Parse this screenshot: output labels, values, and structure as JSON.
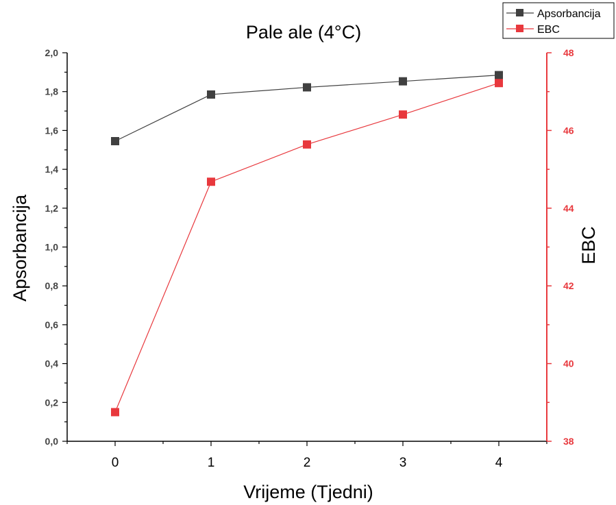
{
  "chart_data": {
    "type": "line",
    "title": "Pale ale (4°C)",
    "xlabel": "Vrijeme (Tjedni)",
    "ylabel_left": "Apsorbancija",
    "ylabel_right": "EBC",
    "x": [
      0,
      1,
      2,
      3,
      4
    ],
    "x_ticks": [
      "0",
      "1",
      "2",
      "3",
      "4"
    ],
    "xlim": [
      -0.5,
      4.5
    ],
    "y_left_lim": [
      0.0,
      2.0
    ],
    "y_left_ticks": [
      "0,0",
      "0,2",
      "0,4",
      "0,6",
      "0,8",
      "1,0",
      "1,2",
      "1,4",
      "1,6",
      "1,8",
      "2,0"
    ],
    "y_right_lim": [
      38,
      48
    ],
    "y_right_ticks": [
      "38",
      "40",
      "42",
      "44",
      "46",
      "48"
    ],
    "legend_position": "top-right",
    "grid": false,
    "series": [
      {
        "name": "Apsorbancija",
        "axis": "left",
        "color": "#404040",
        "marker": "square",
        "values": [
          1.545,
          1.785,
          1.822,
          1.853,
          1.885
        ]
      },
      {
        "name": "EBC",
        "axis": "right",
        "color": "#e8383d",
        "marker": "square",
        "values": [
          38.75,
          44.68,
          45.64,
          46.41,
          47.22
        ]
      }
    ]
  }
}
